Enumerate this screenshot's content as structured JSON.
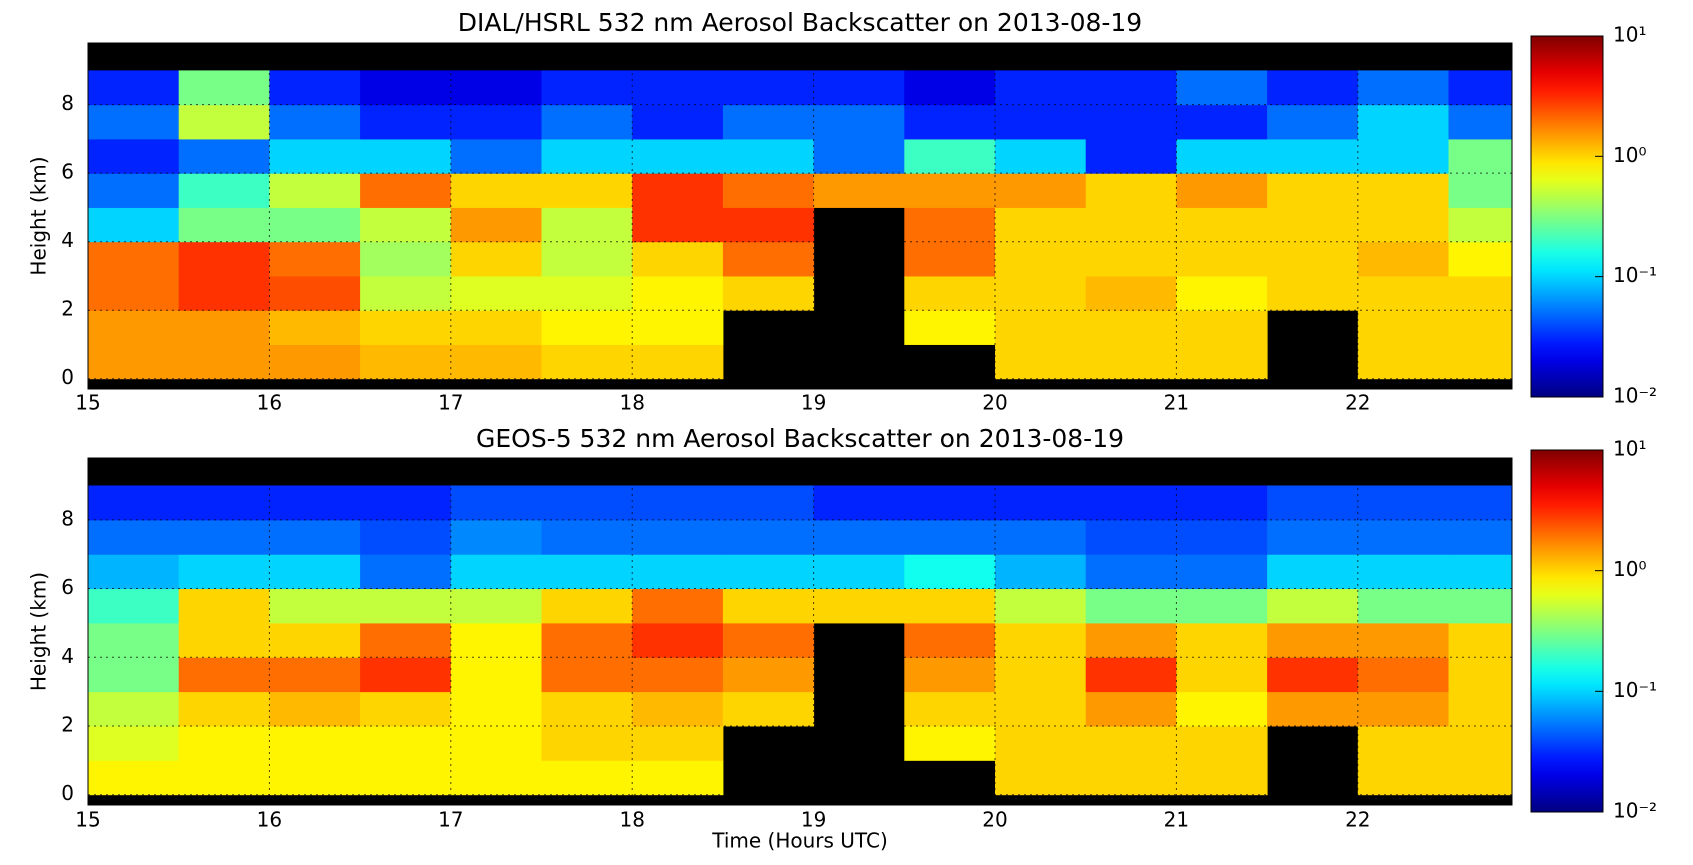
{
  "chart_data": [
    {
      "type": "heatmap",
      "title": "DIAL/HSRL 532 nm Aerosol Backscatter on 2013-08-19",
      "ylabel": "Height (km)",
      "colormap": "jet",
      "grid": true,
      "x_edges": [
        15,
        15.5,
        16,
        16.5,
        17,
        17.5,
        18,
        18.5,
        19,
        19.5,
        20,
        20.5,
        21,
        21.5,
        22,
        22.5,
        22.85
      ],
      "y_edges": [
        0,
        1,
        2,
        3,
        4,
        5,
        6,
        7,
        8,
        9
      ],
      "values": [
        [
          1.5,
          1.5,
          1.5,
          1.2,
          1.2,
          1.0,
          1.0,
          null,
          null,
          null,
          1.0,
          1.0,
          1.0,
          null,
          1.0,
          1.0
        ],
        [
          1.5,
          1.5,
          1.2,
          1.0,
          1.0,
          0.8,
          0.8,
          null,
          null,
          0.8,
          1.0,
          1.0,
          1.0,
          null,
          1.0,
          1.0
        ],
        [
          2.0,
          3.0,
          2.5,
          0.5,
          0.6,
          0.6,
          0.8,
          1.0,
          null,
          1.0,
          1.0,
          1.2,
          0.8,
          1.0,
          1.0,
          1.0
        ],
        [
          2.0,
          3.0,
          2.0,
          0.4,
          1.0,
          0.5,
          1.0,
          2.0,
          null,
          2.0,
          1.0,
          1.0,
          1.0,
          1.0,
          1.2,
          0.8
        ],
        [
          0.1,
          0.3,
          0.3,
          0.5,
          1.5,
          0.5,
          3.0,
          3.0,
          null,
          2.0,
          1.0,
          1.0,
          1.0,
          1.0,
          1.0,
          0.5
        ],
        [
          0.05,
          0.2,
          0.5,
          2.0,
          1.0,
          1.0,
          3.0,
          2.0,
          1.5,
          1.5,
          1.5,
          1.0,
          1.5,
          1.0,
          1.0,
          0.3
        ],
        [
          0.03,
          0.05,
          0.1,
          0.1,
          0.05,
          0.1,
          0.1,
          0.1,
          0.05,
          0.2,
          0.1,
          0.03,
          0.1,
          0.1,
          0.1,
          0.3
        ],
        [
          0.05,
          0.5,
          0.05,
          0.03,
          0.03,
          0.05,
          0.03,
          0.05,
          0.05,
          0.03,
          0.03,
          0.03,
          0.03,
          0.05,
          0.1,
          0.05
        ],
        [
          0.03,
          0.3,
          0.03,
          0.02,
          0.02,
          0.03,
          0.03,
          0.03,
          0.03,
          0.02,
          0.03,
          0.03,
          0.05,
          0.03,
          0.05,
          0.03
        ]
      ],
      "xlim": [
        15,
        22.85
      ],
      "ylim": [
        -0.3,
        9.8
      ],
      "xticks": [
        15,
        16,
        17,
        18,
        19,
        20,
        21,
        22
      ],
      "yticks": [
        0,
        2,
        4,
        6,
        8
      ],
      "colorbar": {
        "lim": [
          0.01,
          10
        ],
        "log": true,
        "ticks": [
          {
            "value": 0.01,
            "label": "10⁻²"
          },
          {
            "value": 0.1,
            "label": "10⁻¹"
          },
          {
            "value": 1,
            "label": "10⁰"
          },
          {
            "value": 10,
            "label": "10¹"
          }
        ]
      }
    },
    {
      "type": "heatmap",
      "title": "GEOS-5 532 nm Aerosol Backscatter on 2013-08-19",
      "ylabel": "Height (km)",
      "xlabel": "Time (Hours UTC)",
      "colormap": "jet",
      "grid": true,
      "x_edges": [
        15,
        15.5,
        16,
        16.5,
        17,
        17.5,
        18,
        18.5,
        19,
        19.5,
        20,
        20.5,
        21,
        21.5,
        22,
        22.5,
        22.85
      ],
      "y_edges": [
        0,
        1,
        2,
        3,
        4,
        5,
        6,
        7,
        8,
        9
      ],
      "values": [
        [
          0.8,
          0.8,
          0.8,
          0.8,
          0.8,
          0.8,
          0.8,
          null,
          null,
          null,
          1.0,
          1.0,
          1.0,
          null,
          1.0,
          1.0
        ],
        [
          0.6,
          0.8,
          0.8,
          0.8,
          0.8,
          1.0,
          1.0,
          null,
          null,
          0.8,
          1.0,
          1.0,
          1.0,
          null,
          1.0,
          1.0
        ],
        [
          0.5,
          1.0,
          1.2,
          1.0,
          0.8,
          1.0,
          1.2,
          1.0,
          null,
          1.0,
          1.0,
          1.5,
          0.8,
          1.5,
          1.5,
          1.0
        ],
        [
          0.3,
          2.0,
          2.0,
          3.0,
          0.8,
          2.0,
          2.0,
          1.5,
          null,
          1.5,
          1.0,
          3.0,
          1.0,
          3.0,
          2.0,
          1.0
        ],
        [
          0.3,
          1.0,
          1.0,
          2.0,
          0.8,
          2.0,
          3.0,
          2.0,
          null,
          2.0,
          1.0,
          1.5,
          1.0,
          1.5,
          1.5,
          1.0
        ],
        [
          0.2,
          1.0,
          0.5,
          0.5,
          0.5,
          1.0,
          2.0,
          1.0,
          1.0,
          1.0,
          0.5,
          0.3,
          0.3,
          0.5,
          0.3,
          0.3
        ],
        [
          0.08,
          0.1,
          0.1,
          0.05,
          0.1,
          0.1,
          0.1,
          0.1,
          0.1,
          0.15,
          0.08,
          0.05,
          0.05,
          0.1,
          0.1,
          0.1
        ],
        [
          0.05,
          0.05,
          0.05,
          0.04,
          0.06,
          0.05,
          0.05,
          0.05,
          0.05,
          0.05,
          0.05,
          0.04,
          0.04,
          0.05,
          0.05,
          0.05
        ],
        [
          0.03,
          0.03,
          0.03,
          0.03,
          0.04,
          0.04,
          0.04,
          0.04,
          0.03,
          0.03,
          0.03,
          0.03,
          0.03,
          0.04,
          0.04,
          0.04
        ]
      ],
      "xlim": [
        15,
        22.85
      ],
      "ylim": [
        -0.3,
        9.8
      ],
      "xticks": [
        15,
        16,
        17,
        18,
        19,
        20,
        21,
        22
      ],
      "yticks": [
        0,
        2,
        4,
        6,
        8
      ],
      "colorbar": {
        "lim": [
          0.01,
          10
        ],
        "log": true,
        "ticks": [
          {
            "value": 0.01,
            "label": "10⁻²"
          },
          {
            "value": 0.1,
            "label": "10⁻¹"
          },
          {
            "value": 1,
            "label": "10⁰"
          },
          {
            "value": 10,
            "label": "10¹"
          }
        ]
      }
    }
  ]
}
